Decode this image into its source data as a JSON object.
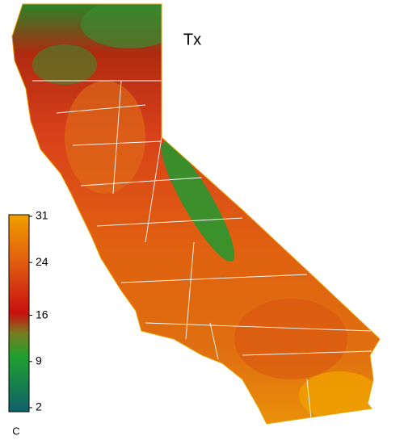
{
  "map": {
    "title": "Tx",
    "colorbar": {
      "lim": [
        2,
        31
      ],
      "ticks": [
        31,
        24,
        16,
        9,
        2
      ],
      "unit": "C"
    }
  }
}
